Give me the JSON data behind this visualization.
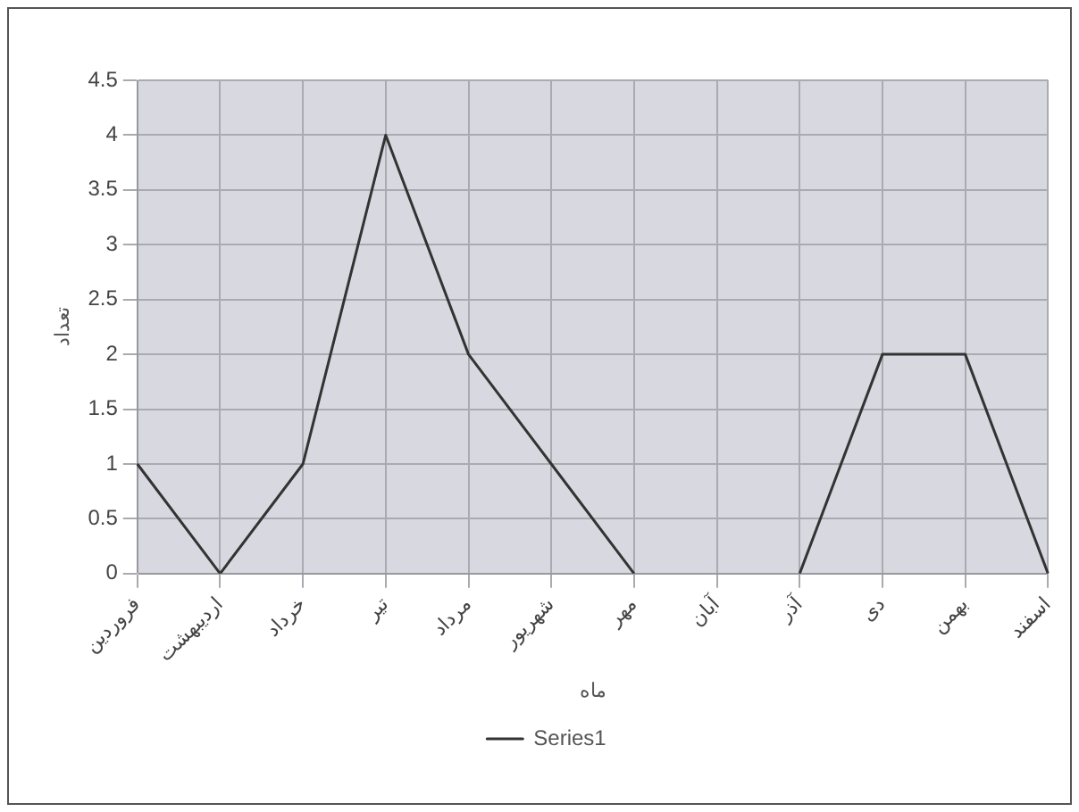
{
  "chart_data": {
    "type": "line",
    "xlabel": "ماه",
    "ylabel": "تعداد",
    "categories": [
      "فروردین",
      "اردیبهشت",
      "خرداد",
      "تیر",
      "مرداد",
      "شهریور",
      "مهر",
      "آبان",
      "آذر",
      "دی",
      "بهمن",
      "اسفند"
    ],
    "series": [
      {
        "name": "Series1",
        "color": "#333333",
        "values": [
          1,
          0,
          1,
          4,
          2,
          1,
          0,
          null,
          0,
          2,
          2,
          0
        ]
      }
    ],
    "ylim": [
      0,
      4.5
    ],
    "yticks": [
      0,
      0.5,
      1,
      1.5,
      2,
      2.5,
      3,
      3.5,
      4,
      4.5
    ],
    "grid": true,
    "legend": "bottom",
    "marker": "none",
    "line_style": "solid"
  }
}
